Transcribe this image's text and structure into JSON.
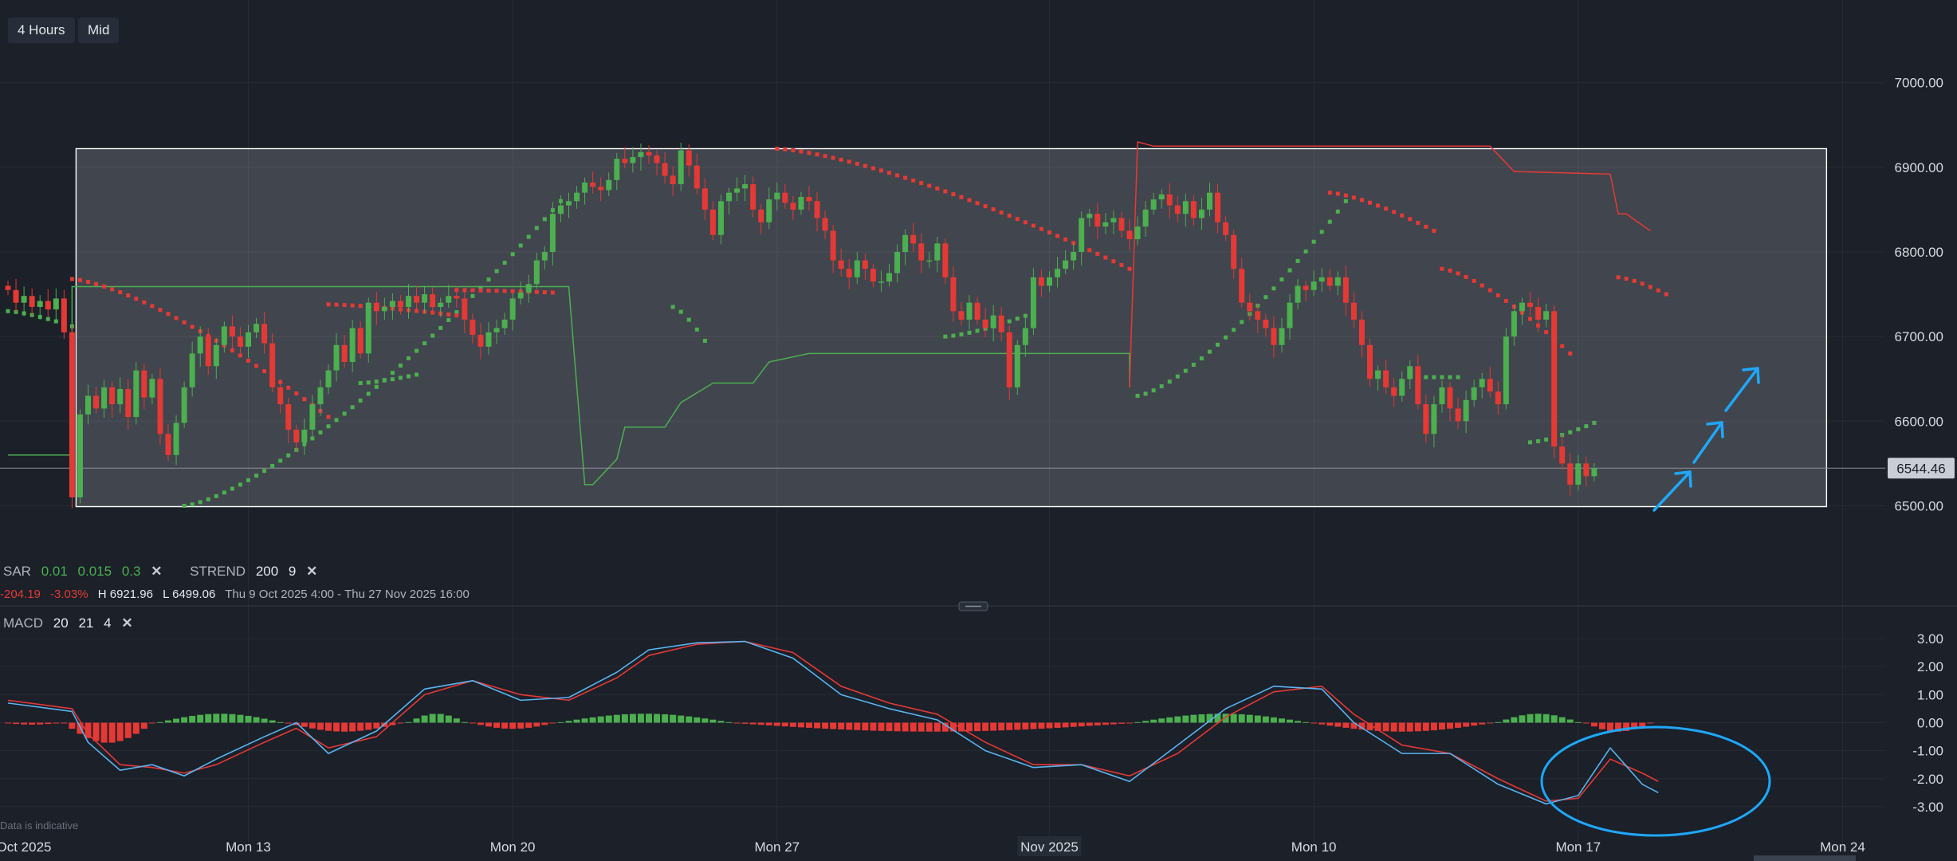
{
  "toolbar": {
    "interval": "4 Hours",
    "price_type": "Mid"
  },
  "indicators": {
    "sar": {
      "name": "SAR",
      "p1": "0.01",
      "p2": "0.015",
      "p3": "0.3"
    },
    "strend": {
      "name": "STREND",
      "p1": "200",
      "p2": "9"
    },
    "macd": {
      "name": "MACD",
      "p1": "20",
      "p2": "21",
      "p3": "4"
    },
    "close_icon": "close-x-icon"
  },
  "summary": {
    "change": "-204.19",
    "change_pct": "-3.03%",
    "high": "H 6921.96",
    "low": "L 6499.06",
    "range": "Thu 9 Oct 2025 4:00 - Thu 27 Nov 2025 16:00"
  },
  "footer": {
    "disclaimer": "Data is indicative"
  },
  "chart_data": [
    {
      "type": "candlestick",
      "y_range": [
        6410,
        7060
      ],
      "y_ticks": [
        "7000.00",
        "6900.00",
        "6800.00",
        "6700.00",
        "6600.00",
        "6500.00"
      ],
      "x_ticks": [
        "Oct 2025",
        "Mon 13",
        "Mon 20",
        "Mon 27",
        "Nov 2025",
        "Mon 10",
        "Mon 17",
        "Mon 24"
      ],
      "last_price": "6544.46",
      "last_price_value": 6544.46,
      "box": {
        "from": "Mon 13",
        "to": "Mon 24",
        "high": 6922,
        "low": 6499
      },
      "colors": {
        "up": "#4caf50",
        "down": "#e53935",
        "sar_up": "#4caf50",
        "sar_down": "#e53935",
        "box": "#ffffff",
        "arrows": "#1ea7ff"
      },
      "candles": [
        6755,
        6740,
        6748,
        6735,
        6742,
        6732,
        6745,
        6705,
        6510,
        6608,
        6630,
        6615,
        6640,
        6620,
        6638,
        6605,
        6660,
        6628,
        6650,
        6585,
        6560,
        6598,
        6640,
        6680,
        6700,
        6665,
        6690,
        6712,
        6700,
        6688,
        6705,
        6715,
        6692,
        6640,
        6620,
        6590,
        6575,
        6590,
        6620,
        6640,
        6660,
        6690,
        6670,
        6710,
        6680,
        6740,
        6730,
        6735,
        6742,
        6735,
        6748,
        6740,
        6750,
        6735,
        6740,
        6748,
        6745,
        6720,
        6702,
        6688,
        6705,
        6710,
        6720,
        6745,
        6752,
        6762,
        6790,
        6800,
        6845,
        6855,
        6860,
        6870,
        6882,
        6877,
        6873,
        6885,
        6910,
        6905,
        6912,
        6918,
        6914,
        6905,
        6890,
        6880,
        6920,
        6902,
        6875,
        6850,
        6820,
        6860,
        6870,
        6875,
        6880,
        6850,
        6835,
        6862,
        6870,
        6858,
        6850,
        6865,
        6860,
        6840,
        6825,
        6790,
        6780,
        6770,
        6790,
        6780,
        6765,
        6765,
        6775,
        6800,
        6820,
        6810,
        6790,
        6790,
        6810,
        6770,
        6730,
        6720,
        6740,
        6720,
        6710,
        6725,
        6705,
        6640,
        6690,
        6710,
        6770,
        6760,
        6770,
        6780,
        6790,
        6800,
        6840,
        6845,
        6830,
        6835,
        6840,
        6825,
        6815,
        6830,
        6850,
        6862,
        6868,
        6855,
        6845,
        6860,
        6840,
        6850,
        6870,
        6835,
        6820,
        6780,
        6740,
        6730,
        6720,
        6710,
        6690,
        6710,
        6740,
        6760,
        6755,
        6765,
        6770,
        6760,
        6770,
        6740,
        6720,
        6690,
        6650,
        6660,
        6640,
        6630,
        6650,
        6665,
        6620,
        6585,
        6620,
        6640,
        6615,
        6600,
        6625,
        6640,
        6650,
        6635,
        6620,
        6700,
        6730,
        6740,
        6735,
        6720,
        6730,
        6570,
        6550,
        6525,
        6550,
        6535,
        6544.46
      ],
      "sar_up_segments": [
        {
          "from": 0,
          "to": 8,
          "start": 6730,
          "end": 6712
        },
        {
          "from": 22,
          "to": 69,
          "start": 6500,
          "end": 6860
        },
        {
          "from": 44,
          "to": 51,
          "start": 6645,
          "end": 6655
        },
        {
          "from": 83,
          "to": 87,
          "start": 6735,
          "end": 6695
        },
        {
          "from": 117,
          "to": 128,
          "start": 6700,
          "end": 6728
        },
        {
          "from": 141,
          "to": 167,
          "start": 6630,
          "end": 6860
        },
        {
          "from": 175,
          "to": 181,
          "start": 6652,
          "end": 6652
        },
        {
          "from": 190,
          "to": 198,
          "start": 6575,
          "end": 6598
        }
      ],
      "sar_down_segments": [
        {
          "from": 8,
          "to": 40,
          "start": 6768,
          "end": 6605
        },
        {
          "from": 40,
          "to": 56,
          "start": 6738,
          "end": 6725
        },
        {
          "from": 56,
          "to": 68,
          "start": 6755,
          "end": 6752
        },
        {
          "from": 96,
          "to": 140,
          "start": 6922,
          "end": 6780
        },
        {
          "from": 165,
          "to": 178,
          "start": 6870,
          "end": 6825
        },
        {
          "from": 179,
          "to": 195,
          "start": 6780,
          "end": 6680
        },
        {
          "from": 201,
          "to": 207,
          "start": 6770,
          "end": 6750
        }
      ],
      "strend_green": [
        [
          0,
          6560
        ],
        [
          8,
          6560
        ],
        [
          8,
          6759
        ],
        [
          70,
          6759
        ],
        [
          72,
          6525
        ],
        [
          73,
          6525
        ],
        [
          76,
          6555
        ],
        [
          77,
          6593
        ],
        [
          82,
          6593
        ],
        [
          84,
          6622
        ],
        [
          88,
          6645
        ],
        [
          93,
          6645
        ],
        [
          95,
          6670
        ],
        [
          100,
          6680
        ],
        [
          140,
          6680
        ],
        [
          140,
          6640
        ]
      ],
      "strend_red": [
        [
          140,
          6640
        ],
        [
          141,
          6930
        ],
        [
          143,
          6925
        ],
        [
          185,
          6925
        ],
        [
          188,
          6895
        ],
        [
          200,
          6892
        ],
        [
          201,
          6845
        ],
        [
          202,
          6845
        ],
        [
          205,
          6825
        ]
      ]
    },
    {
      "type": "macd",
      "name": "MACD",
      "y_range": [
        -3.8,
        3.6
      ],
      "y_ticks": [
        "3.00",
        "2.00",
        "1.00",
        "0.00",
        "-1.00",
        "-2.00",
        "-3.00"
      ],
      "macd_line": [
        [
          0,
          0.7
        ],
        [
          8,
          0.4
        ],
        [
          10,
          -0.7
        ],
        [
          14,
          -1.7
        ],
        [
          18,
          -1.5
        ],
        [
          22,
          -1.9
        ],
        [
          26,
          -1.3
        ],
        [
          32,
          -0.5
        ],
        [
          36,
          0.0
        ],
        [
          40,
          -1.1
        ],
        [
          46,
          -0.3
        ],
        [
          52,
          1.2
        ],
        [
          58,
          1.5
        ],
        [
          64,
          0.8
        ],
        [
          70,
          0.9
        ],
        [
          76,
          1.8
        ],
        [
          80,
          2.6
        ],
        [
          86,
          2.85
        ],
        [
          92,
          2.9
        ],
        [
          98,
          2.3
        ],
        [
          104,
          1.0
        ],
        [
          110,
          0.5
        ],
        [
          116,
          0.1
        ],
        [
          122,
          -1.0
        ],
        [
          128,
          -1.6
        ],
        [
          134,
          -1.5
        ],
        [
          140,
          -2.1
        ],
        [
          146,
          -0.8
        ],
        [
          152,
          0.5
        ],
        [
          158,
          1.3
        ],
        [
          164,
          1.2
        ],
        [
          168,
          0.0
        ],
        [
          174,
          -1.1
        ],
        [
          180,
          -1.1
        ],
        [
          186,
          -2.2
        ],
        [
          192,
          -2.9
        ],
        [
          196,
          -2.6
        ],
        [
          200,
          -0.9
        ],
        [
          204,
          -2.2
        ],
        [
          206,
          -2.5
        ]
      ],
      "signal_line": [
        [
          0,
          0.8
        ],
        [
          8,
          0.5
        ],
        [
          10,
          -0.4
        ],
        [
          14,
          -1.5
        ],
        [
          18,
          -1.6
        ],
        [
          22,
          -1.8
        ],
        [
          26,
          -1.5
        ],
        [
          32,
          -0.7
        ],
        [
          36,
          -0.2
        ],
        [
          40,
          -0.9
        ],
        [
          46,
          -0.5
        ],
        [
          52,
          1.0
        ],
        [
          58,
          1.5
        ],
        [
          64,
          1.0
        ],
        [
          70,
          0.8
        ],
        [
          76,
          1.6
        ],
        [
          80,
          2.4
        ],
        [
          86,
          2.8
        ],
        [
          92,
          2.9
        ],
        [
          98,
          2.5
        ],
        [
          104,
          1.3
        ],
        [
          110,
          0.7
        ],
        [
          116,
          0.3
        ],
        [
          122,
          -0.7
        ],
        [
          128,
          -1.5
        ],
        [
          134,
          -1.5
        ],
        [
          140,
          -1.9
        ],
        [
          146,
          -1.1
        ],
        [
          152,
          0.2
        ],
        [
          158,
          1.1
        ],
        [
          164,
          1.3
        ],
        [
          168,
          0.3
        ],
        [
          174,
          -0.8
        ],
        [
          180,
          -1.1
        ],
        [
          186,
          -2.0
        ],
        [
          192,
          -2.8
        ],
        [
          196,
          -2.7
        ],
        [
          200,
          -1.3
        ],
        [
          204,
          -1.8
        ],
        [
          206,
          -2.1
        ]
      ],
      "histogram": [
        [
          0,
          6,
          -0.05
        ],
        [
          7,
          18,
          -0.7
        ],
        [
          19,
          34,
          0.3
        ],
        [
          35,
          49,
          -0.3
        ],
        [
          50,
          57,
          0.3
        ],
        [
          58,
          68,
          -0.2
        ],
        [
          69,
          90,
          0.3
        ],
        [
          91,
          140,
          -0.3
        ],
        [
          141,
          162,
          0.3
        ],
        [
          163,
          185,
          -0.3
        ],
        [
          186,
          196,
          0.3
        ],
        [
          197,
          205,
          -0.3
        ]
      ],
      "colors": {
        "macd": "#5ab4f0",
        "signal": "#e53935",
        "hist_up": "#4caf50",
        "hist_down": "#e53935",
        "ellipse": "#1ea7ff"
      }
    }
  ]
}
